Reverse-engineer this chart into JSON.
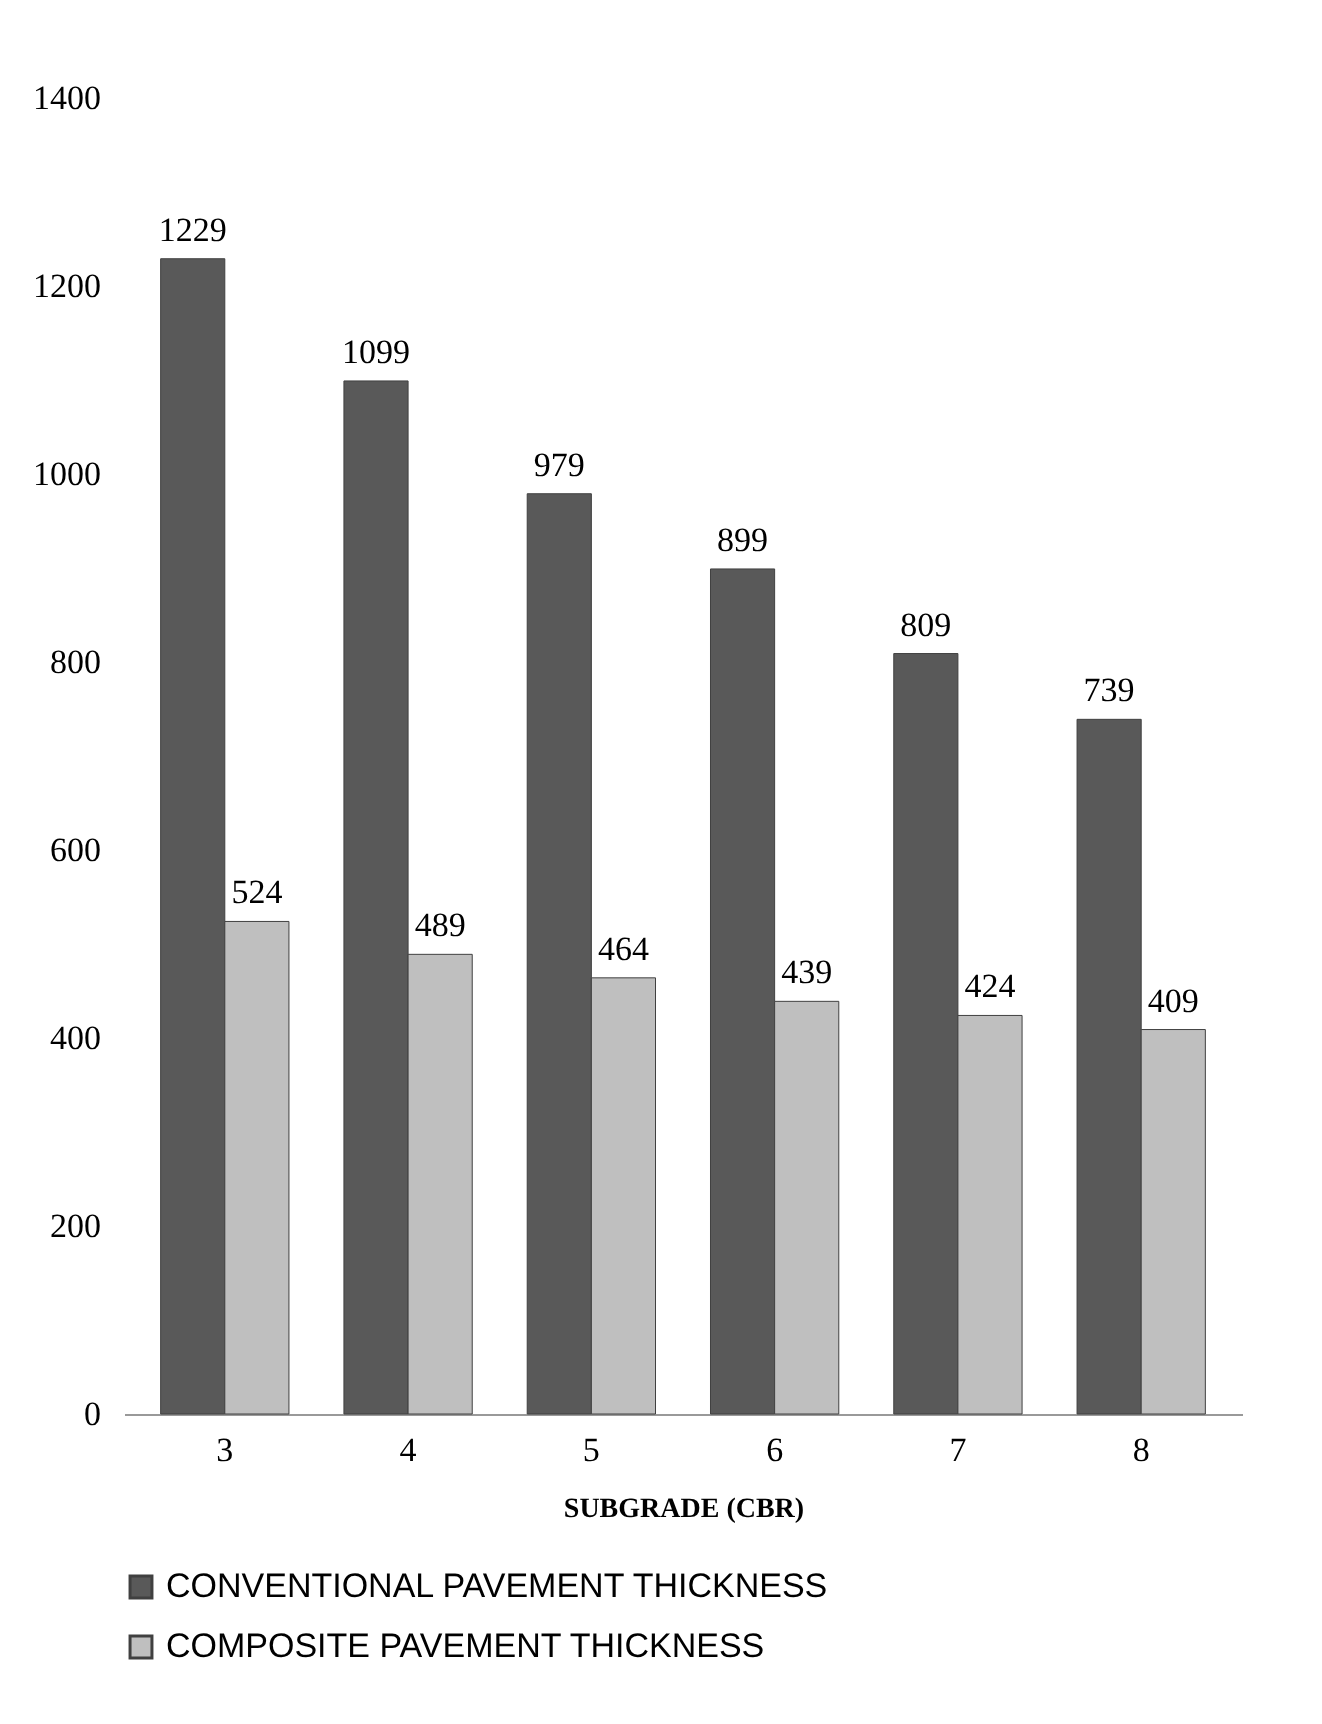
{
  "chart_data": {
    "type": "bar",
    "categories": [
      "3",
      "4",
      "5",
      "6",
      "7",
      "8"
    ],
    "xlabel": "SUBGRADE (CBR)",
    "series": [
      {
        "name": "CONVENTIONAL PAVEMENT THICKNESS",
        "color": "#595959",
        "values": [
          1229,
          1099,
          979,
          899,
          809,
          739
        ]
      },
      {
        "name": "COMPOSITE PAVEMENT THICKNESS",
        "color": "#bfbfbf",
        "values": [
          524,
          489,
          464,
          439,
          424,
          409
        ]
      }
    ],
    "ylim": [
      0,
      1400
    ],
    "yticks": [
      0,
      200,
      400,
      600,
      800,
      1000,
      1200,
      1400
    ],
    "data_labels": true,
    "grid": false,
    "legend": "bottom"
  }
}
